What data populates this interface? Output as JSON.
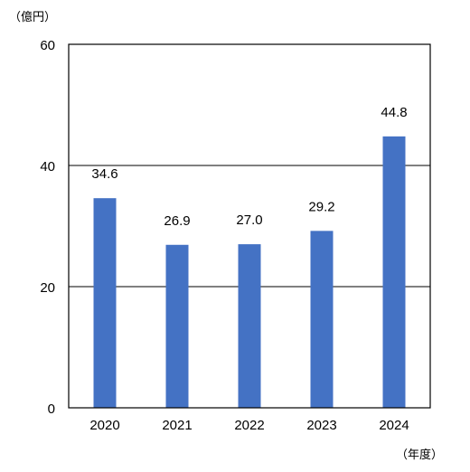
{
  "chart_data": {
    "type": "bar",
    "categories": [
      "2020",
      "2021",
      "2022",
      "2023",
      "2024"
    ],
    "series": [
      {
        "values": [
          34.6,
          26.9,
          27.0,
          29.2,
          44.8
        ]
      }
    ],
    "data_labels": [
      "34.6",
      "26.9",
      "27.0",
      "29.2",
      "44.8"
    ],
    "y_ticks": [
      0,
      20,
      40,
      60
    ],
    "ylim": [
      0,
      60
    ],
    "y_unit": "（億円）",
    "x_unit": "（年度）",
    "title": "",
    "grid": true,
    "bar_color": "#4472c4",
    "grid_color": "#000000"
  }
}
